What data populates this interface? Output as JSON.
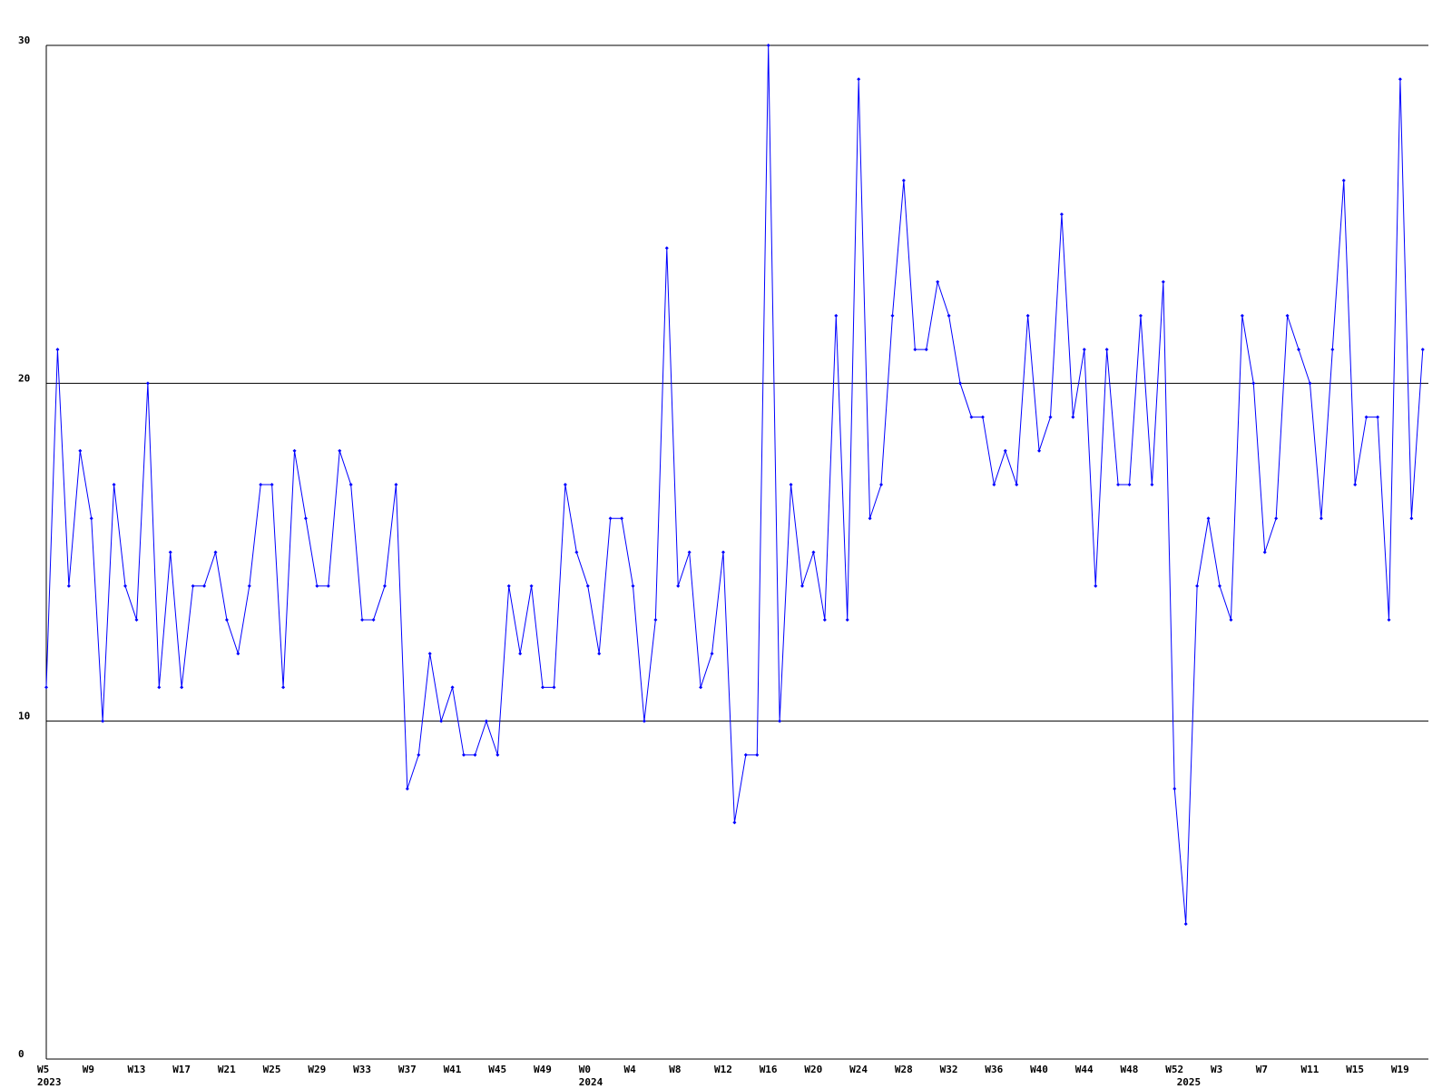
{
  "chart_data": {
    "type": "line",
    "categories": [
      "W5",
      null,
      null,
      null,
      "W9",
      null,
      null,
      null,
      "W13",
      null,
      null,
      null,
      "W17",
      null,
      null,
      null,
      "W21",
      null,
      null,
      null,
      "W25",
      null,
      null,
      null,
      "W29",
      null,
      null,
      null,
      "W33",
      null,
      null,
      null,
      "W37",
      null,
      null,
      null,
      "W41",
      null,
      null,
      null,
      "W45",
      null,
      null,
      null,
      "W49",
      null,
      null,
      null,
      "W0",
      null,
      null,
      null,
      "W4",
      null,
      null,
      null,
      "W8",
      null,
      null,
      null,
      "W12",
      null,
      null,
      null,
      "W16",
      null,
      null,
      null,
      "W20",
      null,
      null,
      null,
      "W24",
      null,
      null,
      null,
      "W28",
      null,
      null,
      null,
      "W32",
      null,
      null,
      null,
      "W36",
      null,
      null,
      null,
      "W40",
      null,
      null,
      null,
      "W44",
      null,
      null,
      null,
      "W48",
      null,
      null,
      null,
      "W52",
      null,
      null,
      null,
      "W3",
      null,
      null,
      null,
      "W7",
      null,
      null,
      null,
      "W11",
      null,
      null,
      null,
      "W15",
      null,
      null,
      null,
      "W19",
      null,
      null
    ],
    "years": [
      "2023",
      null,
      null,
      null,
      null,
      null,
      null,
      null,
      null,
      null,
      null,
      null,
      null,
      null,
      null,
      null,
      null,
      null,
      null,
      null,
      null,
      null,
      null,
      null,
      null,
      null,
      null,
      null,
      null,
      null,
      null,
      null,
      null,
      null,
      null,
      null,
      null,
      null,
      null,
      null,
      null,
      null,
      null,
      null,
      null,
      null,
      null,
      null,
      "2024",
      null,
      null,
      null,
      null,
      null,
      null,
      null,
      null,
      null,
      null,
      null,
      null,
      null,
      null,
      null,
      null,
      null,
      null,
      null,
      null,
      null,
      null,
      null,
      null,
      null,
      null,
      null,
      null,
      null,
      null,
      null,
      null,
      null,
      null,
      null,
      null,
      null,
      null,
      null,
      null,
      null,
      null,
      null,
      null,
      null,
      null,
      null,
      null,
      null,
      null,
      null,
      null,
      "2025",
      null,
      null,
      null,
      null,
      null,
      null,
      null,
      null,
      null,
      null,
      null,
      null,
      null,
      null,
      null,
      null,
      null,
      null,
      null,
      null
    ],
    "values": [
      11,
      21,
      14,
      18,
      16,
      10,
      17,
      14,
      13,
      20,
      11,
      15,
      11,
      14,
      14,
      15,
      13,
      12,
      14,
      17,
      17,
      11,
      18,
      16,
      14,
      14,
      18,
      17,
      13,
      13,
      14,
      17,
      8,
      9,
      12,
      10,
      11,
      9,
      9,
      10,
      9,
      14,
      12,
      14,
      11,
      11,
      17,
      15,
      14,
      12,
      16,
      16,
      14,
      10,
      13,
      24,
      14,
      15,
      11,
      12,
      15,
      7,
      9,
      9,
      30,
      10,
      17,
      14,
      15,
      13,
      22,
      13,
      29,
      16,
      17,
      22,
      26,
      21,
      21,
      23,
      22,
      20,
      19,
      19,
      17,
      18,
      17,
      22,
      18,
      19,
      25,
      19,
      21,
      14,
      21,
      17,
      17,
      22,
      17,
      23,
      8,
      4,
      14,
      16,
      14,
      13,
      22,
      20,
      15,
      16,
      22,
      21,
      20,
      16,
      21,
      26,
      17,
      19,
      19,
      13,
      29,
      16,
      21
    ],
    "color": "#0000ff",
    "ylim": [
      0,
      30
    ],
    "yticks": [
      0,
      10,
      20,
      30
    ],
    "grid": true
  }
}
